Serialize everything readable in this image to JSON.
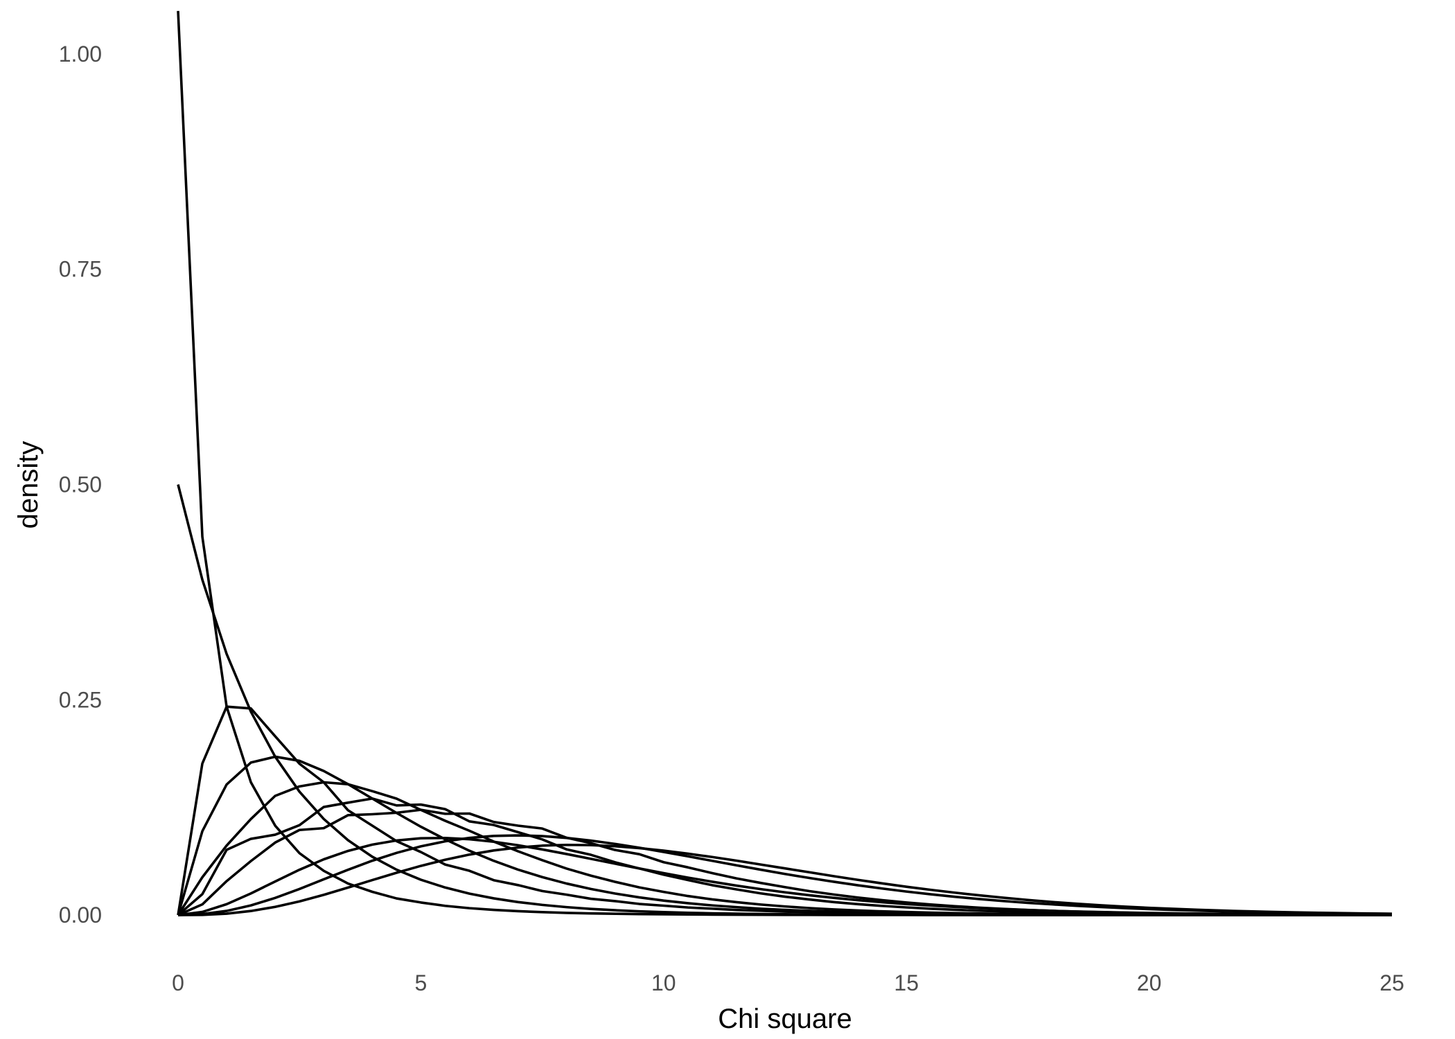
{
  "chart_data": {
    "type": "line",
    "title": "",
    "xlabel": "Chi square",
    "ylabel": "density",
    "xlim": [
      0,
      25
    ],
    "ylim": [
      -0.045,
      1.045
    ],
    "x_ticks": [
      0,
      5,
      10,
      15,
      20,
      25
    ],
    "x_tick_labels": [
      "0",
      "5",
      "10",
      "15",
      "20",
      "25"
    ],
    "y_ticks": [
      0,
      0.25,
      0.5,
      0.75,
      1
    ],
    "y_tick_labels": [
      "0.00",
      "0.25",
      "0.50",
      "0.75",
      "1.00"
    ],
    "grid": false,
    "legend": "none",
    "line_color": "#000000",
    "x": [
      0,
      0.5,
      1,
      1.5,
      2,
      2.5,
      3,
      3.5,
      4,
      4.5,
      5,
      5.5,
      6,
      6.5,
      7,
      7.5,
      8,
      8.5,
      9,
      9.5,
      10,
      10.5,
      11,
      11.5,
      12,
      12.5,
      13,
      13.5,
      14,
      14.5,
      15,
      15.5,
      16,
      16.5,
      17,
      17.5,
      18,
      18.5,
      19,
      19.5,
      20,
      20.5,
      21,
      21.5,
      22,
      22.5,
      23,
      23.5,
      24,
      24.5,
      25
    ],
    "series": [
      {
        "values": [
          1.05,
          0.4394,
          0.242,
          0.1542,
          0.1038,
          0.0719,
          0.0514,
          0.0366,
          0.027,
          0.0193,
          0.0146,
          0.0107,
          0.008,
          0.006,
          0.0045,
          0.0034,
          0.0025,
          0.0019,
          0.0015,
          0.0011,
          0.0009,
          0.0007,
          0.0005,
          0.0004,
          0.0003,
          0.0002,
          0.0002,
          0.0001,
          0.0001,
          0.0001,
          0.0001,
          0,
          0,
          0,
          0,
          0,
          0,
          0,
          0,
          0,
          0,
          0,
          0,
          0,
          0,
          0,
          0,
          0,
          0,
          0,
          0
        ]
      },
      {
        "values": [
          0.5,
          0.3894,
          0.3033,
          0.2362,
          0.1839,
          0.1433,
          0.1116,
          0.0869,
          0.0677,
          0.0527,
          0.041,
          0.032,
          0.0249,
          0.0194,
          0.0151,
          0.0118,
          0.0092,
          0.0071,
          0.0056,
          0.0043,
          0.0034,
          0.0026,
          0.002,
          0.0016,
          0.0012,
          0.001,
          0.0008,
          0.0006,
          0.0005,
          0.0004,
          0.0003,
          0.0002,
          0.0002,
          0.0001,
          0.0001,
          0.0001,
          0.0001,
          0,
          0,
          0,
          0,
          0,
          0,
          0,
          0,
          0,
          0,
          0,
          0,
          0,
          0
        ]
      },
      {
        "values": [
          0,
          0.176,
          0.242,
          0.2399,
          0.2076,
          0.1758,
          0.1542,
          0.1217,
          0.1038,
          0.0858,
          0.0732,
          0.0587,
          0.0514,
          0.0405,
          0.0348,
          0.0279,
          0.0237,
          0.0189,
          0.0162,
          0.0129,
          0.0109,
          0.0088,
          0.0074,
          0.0059,
          0.005,
          0.004,
          0.0034,
          0.0027,
          0.0023,
          0.0018,
          0.0015,
          0.0012,
          0.001,
          0.0008,
          0.0007,
          0.0006,
          0.0005,
          0.0004,
          0.0003,
          0.0003,
          0.0002,
          0.0002,
          0.0002,
          0.0001,
          0.0001,
          0.0001,
          0.0001,
          0,
          0,
          0,
          0
        ]
      },
      {
        "values": [
          0,
          0.0974,
          0.1516,
          0.1771,
          0.1839,
          0.1791,
          0.1673,
          0.152,
          0.1353,
          0.1186,
          0.1026,
          0.088,
          0.0747,
          0.063,
          0.0528,
          0.0441,
          0.0366,
          0.0303,
          0.025,
          0.0205,
          0.0168,
          0.0138,
          0.0112,
          0.0092,
          0.0074,
          0.006,
          0.0049,
          0.004,
          0.0032,
          0.0026,
          0.0021,
          0.0017,
          0.0013,
          0.0011,
          0.0009,
          0.0007,
          0.0006,
          0.0005,
          0.0004,
          0.0003,
          0.0002,
          0.0002,
          0.0002,
          0.0001,
          0.0001,
          0.0001,
          0.0001,
          0,
          0,
          0,
          0
        ]
      },
      {
        "values": [
          0,
          0.0439,
          0.0807,
          0.1115,
          0.1384,
          0.1494,
          0.1542,
          0.1519,
          0.1439,
          0.1352,
          0.1221,
          0.1095,
          0.0979,
          0.0854,
          0.0741,
          0.0637,
          0.054,
          0.0458,
          0.0386,
          0.0321,
          0.0269,
          0.0221,
          0.0182,
          0.015,
          0.0122,
          0.01,
          0.0081,
          0.0066,
          0.0053,
          0.0043,
          0.0035,
          0.0028,
          0.0022,
          0.0018,
          0.0014,
          0.0012,
          0.0009,
          0.0007,
          0.0006,
          0.0005,
          0.0004,
          0.0003,
          0.0002,
          0.0002,
          0.0002,
          0.0001,
          0.0001,
          0.0001,
          0.0001,
          0,
          0
        ]
      },
      {
        "values": [
          0,
          0.0243,
          0.0758,
          0.0885,
          0.0933,
          0.1044,
          0.1255,
          0.1305,
          0.1353,
          0.1273,
          0.1283,
          0.123,
          0.1088,
          0.1046,
          0.0963,
          0.0879,
          0.0763,
          0.07,
          0.0613,
          0.0541,
          0.0469,
          0.0407,
          0.0347,
          0.0298,
          0.0252,
          0.0213,
          0.0181,
          0.0151,
          0.0127,
          0.0106,
          0.0089,
          0.0073,
          0.0061,
          0.005,
          0.0042,
          0.0034,
          0.0028,
          0.0023,
          0.0019,
          0.0015,
          0.0013,
          0.001,
          0.0008,
          0.0007,
          0.0005,
          0.0005,
          0.0004,
          0.0003,
          0.0002,
          0.0002,
          0.0002
        ]
      },
      {
        "values": [
          0,
          0.0124,
          0.0394,
          0.0627,
          0.0842,
          0.0988,
          0.1009,
          0.116,
          0.1171,
          0.1188,
          0.1222,
          0.1176,
          0.1179,
          0.1081,
          0.1038,
          0.1005,
          0.0898,
          0.0835,
          0.0756,
          0.0707,
          0.0614,
          0.0554,
          0.0487,
          0.0426,
          0.0373,
          0.0324,
          0.0278,
          0.0239,
          0.0203,
          0.0173,
          0.0146,
          0.0123,
          0.0103,
          0.0086,
          0.0071,
          0.0059,
          0.0049,
          0.004,
          0.0033,
          0.0027,
          0.0022,
          0.0018,
          0.0015,
          0.0012,
          0.001,
          0.0008,
          0.0006,
          0.0005,
          0.0004,
          0.0003,
          0.0003
        ]
      },
      {
        "values": [
          0,
          0.0036,
          0.0126,
          0.0251,
          0.039,
          0.0526,
          0.0647,
          0.0745,
          0.0818,
          0.0866,
          0.0892,
          0.0895,
          0.0881,
          0.0851,
          0.0811,
          0.0762,
          0.0709,
          0.0653,
          0.0597,
          0.0541,
          0.0487,
          0.0435,
          0.0387,
          0.0342,
          0.0301,
          0.0264,
          0.023,
          0.02,
          0.0173,
          0.0149,
          0.0128,
          0.011,
          0.0094,
          0.008,
          0.0068,
          0.0058,
          0.0049,
          0.0041,
          0.0035,
          0.0029,
          0.0024,
          0.002,
          0.0017,
          0.0014,
          0.0012,
          0.001,
          0.0008,
          0.0007,
          0.0006,
          0.0005,
          0.0004
        ]
      },
      {
        "values": [
          0,
          0.0011,
          0.0048,
          0.0112,
          0.0199,
          0.0303,
          0.0415,
          0.0526,
          0.0631,
          0.0722,
          0.0798,
          0.0856,
          0.0896,
          0.0919,
          0.0925,
          0.0917,
          0.0896,
          0.0865,
          0.0826,
          0.0782,
          0.0733,
          0.0682,
          0.063,
          0.0578,
          0.0527,
          0.0477,
          0.0431,
          0.0387,
          0.0346,
          0.0308,
          0.0273,
          0.0241,
          0.0212,
          0.0186,
          0.0163,
          0.0142,
          0.0124,
          0.0107,
          0.0093,
          0.008,
          0.0069,
          0.0059,
          0.0051,
          0.0043,
          0.0037,
          0.0031,
          0.0027,
          0.0023,
          0.0019,
          0.0016,
          0.0014
        ]
      },
      {
        "values": [
          0,
          0.0002,
          0.0016,
          0.0047,
          0.0095,
          0.0158,
          0.0235,
          0.0319,
          0.0406,
          0.0491,
          0.0571,
          0.0642,
          0.0702,
          0.075,
          0.0784,
          0.0806,
          0.0815,
          0.0812,
          0.0799,
          0.0777,
          0.0748,
          0.0713,
          0.0674,
          0.0632,
          0.0587,
          0.0542,
          0.0497,
          0.0452,
          0.0409,
          0.0368,
          0.0329,
          0.0293,
          0.026,
          0.0229,
          0.0201,
          0.0175,
          0.0152,
          0.0132,
          0.0114,
          0.0098,
          0.0084,
          0.0072,
          0.0061,
          0.0052,
          0.0044,
          0.0037,
          0.0031,
          0.0026,
          0.0022,
          0.0018,
          0.0015
        ]
      }
    ]
  }
}
